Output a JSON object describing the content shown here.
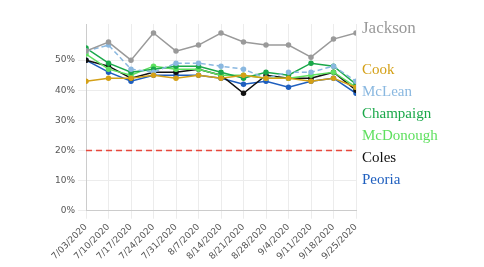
{
  "chart_data": {
    "type": "line",
    "x": [
      "7/03/2020",
      "7/10/2020",
      "7/17/2020",
      "7/24/2020",
      "7/31/2020",
      "8/7/2020",
      "8/14/2020",
      "8/21/2020",
      "8/28/2020",
      "9/4/2020",
      "9/11/2020",
      "9/18/2020",
      "9/25/2020"
    ],
    "series": [
      {
        "name": "Jackson",
        "color": "#9a9a9a",
        "marker": "circle",
        "values": [
          53,
          56,
          50,
          59,
          53,
          55,
          59,
          56,
          55,
          55,
          51,
          57,
          59
        ]
      },
      {
        "name": "Cook",
        "color": "#d4a017",
        "marker": "circle",
        "values": [
          43,
          44,
          44,
          45,
          44,
          45,
          44,
          45,
          44,
          44,
          43,
          44,
          41
        ]
      },
      {
        "name": "McLean",
        "color": "#8ab8e0",
        "marker": "circle",
        "line_style": "dashed",
        "values": [
          53,
          55,
          47,
          46,
          49,
          49,
          48,
          47,
          44,
          46,
          46,
          48,
          43
        ]
      },
      {
        "name": "Champaign",
        "color": "#1aa84a",
        "marker": "circle",
        "values": [
          54,
          49,
          46,
          47,
          48,
          48,
          46,
          44,
          46,
          45,
          49,
          48,
          42
        ]
      },
      {
        "name": "McDonough",
        "color": "#5fe05f",
        "marker": "circle",
        "values": [
          52,
          47,
          45,
          48,
          47,
          47,
          45,
          45,
          44,
          44,
          45,
          46,
          41
        ]
      },
      {
        "name": "Coles",
        "color": "#111111",
        "marker": "circle",
        "values": [
          50,
          48,
          44,
          46,
          46,
          47,
          45,
          39,
          45,
          44,
          44,
          46,
          40
        ]
      },
      {
        "name": "Peoria",
        "color": "#1f5fbf",
        "marker": "circle",
        "values": [
          50,
          46,
          43,
          45,
          45,
          45,
          44,
          42,
          43,
          41,
          43,
          44,
          39
        ]
      }
    ],
    "reference_line": {
      "value": 20,
      "color": "#e8483c",
      "line_style": "dashed"
    },
    "ylim": [
      0,
      62
    ],
    "yticks": [
      {
        "value": 0,
        "label": "0%"
      },
      {
        "value": 10,
        "label": "10%"
      },
      {
        "value": 20,
        "label": "20%"
      },
      {
        "value": 30,
        "label": "30%"
      },
      {
        "value": 40,
        "label": "40%"
      },
      {
        "value": 50,
        "label": "50%"
      }
    ],
    "grid": true,
    "legend": "right"
  }
}
